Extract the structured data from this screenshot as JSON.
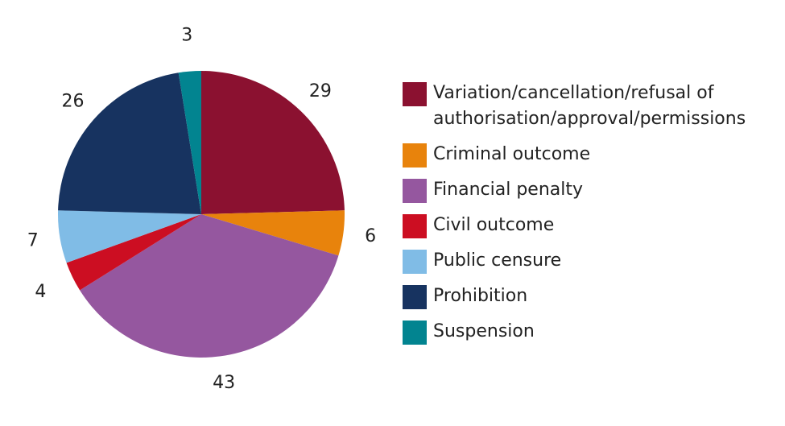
{
  "chart_data": {
    "type": "pie",
    "start_angle_deg": 0,
    "direction": "clockwise",
    "legend_position": "right",
    "slices": [
      {
        "label": "Variation/cancellation/refusal of authorisation/approval/permissions",
        "value": 29,
        "color": "#8B1130"
      },
      {
        "label": "Criminal outcome",
        "value": 6,
        "color": "#E8830C"
      },
      {
        "label": "Financial penalty",
        "value": 43,
        "color": "#95579F"
      },
      {
        "label": "Civil outcome",
        "value": 4,
        "color": "#CC0E22"
      },
      {
        "label": "Public censure",
        "value": 7,
        "color": "#80BCE6"
      },
      {
        "label": "Prohibition",
        "value": 26,
        "color": "#173360"
      },
      {
        "label": "Suspension",
        "value": 3,
        "color": "#028490"
      }
    ]
  },
  "legend": {
    "items": [
      {
        "label": "Variation/cancellation/refusal of authorisation/approval/permissions",
        "color": "#8B1130"
      },
      {
        "label": "Criminal outcome",
        "color": "#E8830C"
      },
      {
        "label": "Financial penalty",
        "color": "#95579F"
      },
      {
        "label": "Civil outcome",
        "color": "#CC0E22"
      },
      {
        "label": "Public censure",
        "color": "#80BCE6"
      },
      {
        "label": "Prohibition",
        "color": "#173360"
      },
      {
        "label": "Suspension",
        "color": "#028490"
      }
    ]
  }
}
